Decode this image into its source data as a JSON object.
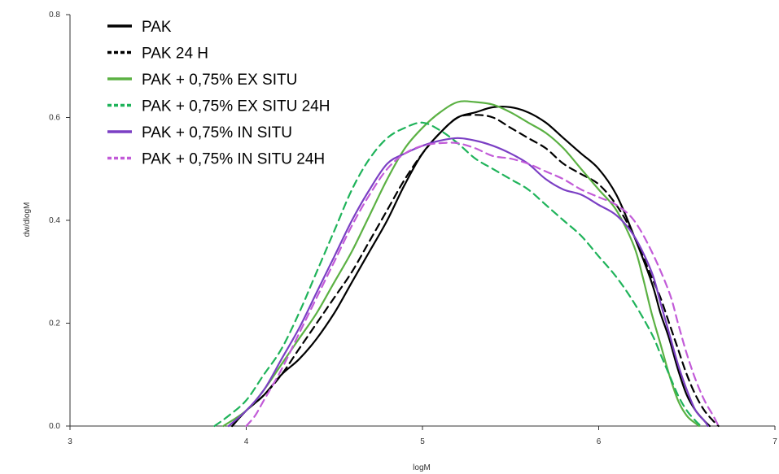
{
  "chart_data": {
    "type": "line",
    "xlabel": "logM",
    "ylabel": "dw/dlogM",
    "xlim": [
      3,
      7
    ],
    "ylim": [
      0,
      0.8
    ],
    "xticks": [
      "3",
      "4",
      "5",
      "6",
      "7"
    ],
    "yticks": [
      "0.0",
      "0.2",
      "0.4",
      "0.6",
      "0.8"
    ],
    "legend_position": "top-left",
    "grid": false,
    "series": [
      {
        "name": "PAK",
        "color": "#000000",
        "style": "solid",
        "x": [
          3.92,
          4.0,
          4.1,
          4.2,
          4.3,
          4.4,
          4.5,
          4.6,
          4.7,
          4.8,
          4.9,
          5.0,
          5.1,
          5.2,
          5.3,
          5.4,
          5.5,
          5.6,
          5.7,
          5.8,
          5.9,
          6.0,
          6.1,
          6.2,
          6.3,
          6.35,
          6.4,
          6.45,
          6.5,
          6.55,
          6.6,
          6.63
        ],
        "y": [
          0.0,
          0.03,
          0.06,
          0.1,
          0.13,
          0.17,
          0.22,
          0.28,
          0.34,
          0.4,
          0.47,
          0.53,
          0.57,
          0.6,
          0.61,
          0.62,
          0.62,
          0.61,
          0.59,
          0.56,
          0.53,
          0.5,
          0.45,
          0.37,
          0.28,
          0.22,
          0.17,
          0.11,
          0.06,
          0.03,
          0.01,
          0.0
        ]
      },
      {
        "name": "PAK 24 H",
        "color": "#000000",
        "style": "dashed",
        "x": [
          3.92,
          4.0,
          4.1,
          4.2,
          4.3,
          4.4,
          4.5,
          4.6,
          4.7,
          4.8,
          4.9,
          5.0,
          5.1,
          5.2,
          5.3,
          5.4,
          5.5,
          5.6,
          5.7,
          5.8,
          5.9,
          6.0,
          6.1,
          6.2,
          6.3,
          6.35,
          6.4,
          6.45,
          6.5,
          6.55,
          6.6,
          6.65,
          6.68
        ],
        "y": [
          0.0,
          0.03,
          0.06,
          0.1,
          0.15,
          0.2,
          0.25,
          0.3,
          0.36,
          0.42,
          0.48,
          0.53,
          0.57,
          0.6,
          0.605,
          0.6,
          0.58,
          0.56,
          0.54,
          0.51,
          0.49,
          0.47,
          0.43,
          0.37,
          0.29,
          0.25,
          0.2,
          0.15,
          0.1,
          0.06,
          0.03,
          0.01,
          0.0
        ]
      },
      {
        "name": "PAK + 0,75% EX SITU",
        "color": "#5bb143",
        "style": "solid",
        "x": [
          3.87,
          4.0,
          4.1,
          4.2,
          4.3,
          4.4,
          4.5,
          4.6,
          4.7,
          4.8,
          4.9,
          5.0,
          5.1,
          5.2,
          5.3,
          5.4,
          5.5,
          5.6,
          5.7,
          5.8,
          5.9,
          6.0,
          6.1,
          6.2,
          6.25,
          6.3,
          6.35,
          6.4,
          6.45,
          6.5,
          6.55,
          6.57
        ],
        "y": [
          0.0,
          0.03,
          0.07,
          0.12,
          0.17,
          0.22,
          0.28,
          0.34,
          0.41,
          0.48,
          0.54,
          0.58,
          0.61,
          0.63,
          0.63,
          0.625,
          0.61,
          0.59,
          0.57,
          0.54,
          0.5,
          0.46,
          0.42,
          0.35,
          0.29,
          0.22,
          0.16,
          0.1,
          0.05,
          0.02,
          0.005,
          0.0
        ]
      },
      {
        "name": "PAK + 0,75% EX SITU 24H",
        "color": "#1fb35a",
        "style": "dashed",
        "x": [
          3.82,
          3.9,
          4.0,
          4.1,
          4.2,
          4.3,
          4.4,
          4.5,
          4.6,
          4.7,
          4.8,
          4.9,
          5.0,
          5.1,
          5.2,
          5.3,
          5.4,
          5.5,
          5.6,
          5.7,
          5.8,
          5.9,
          6.0,
          6.1,
          6.2,
          6.3,
          6.35,
          6.4,
          6.45,
          6.5,
          6.55,
          6.58
        ],
        "y": [
          0.0,
          0.02,
          0.05,
          0.1,
          0.15,
          0.22,
          0.3,
          0.38,
          0.46,
          0.52,
          0.56,
          0.58,
          0.59,
          0.575,
          0.55,
          0.52,
          0.5,
          0.48,
          0.46,
          0.43,
          0.4,
          0.37,
          0.33,
          0.29,
          0.24,
          0.18,
          0.14,
          0.1,
          0.06,
          0.03,
          0.01,
          0.0
        ]
      },
      {
        "name": "PAK + 0,75% IN SITU",
        "color": "#7b3fc4",
        "style": "solid",
        "x": [
          3.9,
          4.0,
          4.1,
          4.2,
          4.3,
          4.4,
          4.5,
          4.6,
          4.7,
          4.8,
          4.9,
          5.0,
          5.1,
          5.2,
          5.3,
          5.4,
          5.5,
          5.6,
          5.7,
          5.8,
          5.9,
          6.0,
          6.1,
          6.2,
          6.3,
          6.35,
          6.4,
          6.45,
          6.5,
          6.55,
          6.6,
          6.62
        ],
        "y": [
          0.0,
          0.03,
          0.07,
          0.13,
          0.19,
          0.26,
          0.33,
          0.4,
          0.46,
          0.51,
          0.53,
          0.545,
          0.555,
          0.56,
          0.555,
          0.545,
          0.53,
          0.51,
          0.48,
          0.46,
          0.45,
          0.43,
          0.41,
          0.37,
          0.3,
          0.24,
          0.18,
          0.12,
          0.07,
          0.03,
          0.01,
          0.0
        ]
      },
      {
        "name": "PAK + 0,75% IN SITU 24H",
        "color": "#c25bd8",
        "style": "dashed",
        "x": [
          4.0,
          4.05,
          4.1,
          4.2,
          4.3,
          4.4,
          4.5,
          4.6,
          4.7,
          4.8,
          4.9,
          5.0,
          5.1,
          5.2,
          5.3,
          5.4,
          5.5,
          5.6,
          5.7,
          5.8,
          5.9,
          6.0,
          6.1,
          6.2,
          6.3,
          6.4,
          6.45,
          6.5,
          6.55,
          6.6,
          6.65,
          6.68
        ],
        "y": [
          0.0,
          0.02,
          0.05,
          0.11,
          0.18,
          0.25,
          0.32,
          0.39,
          0.45,
          0.5,
          0.53,
          0.545,
          0.55,
          0.55,
          0.54,
          0.525,
          0.52,
          0.51,
          0.495,
          0.48,
          0.46,
          0.445,
          0.43,
          0.4,
          0.34,
          0.26,
          0.2,
          0.14,
          0.09,
          0.05,
          0.02,
          0.0
        ]
      }
    ]
  }
}
